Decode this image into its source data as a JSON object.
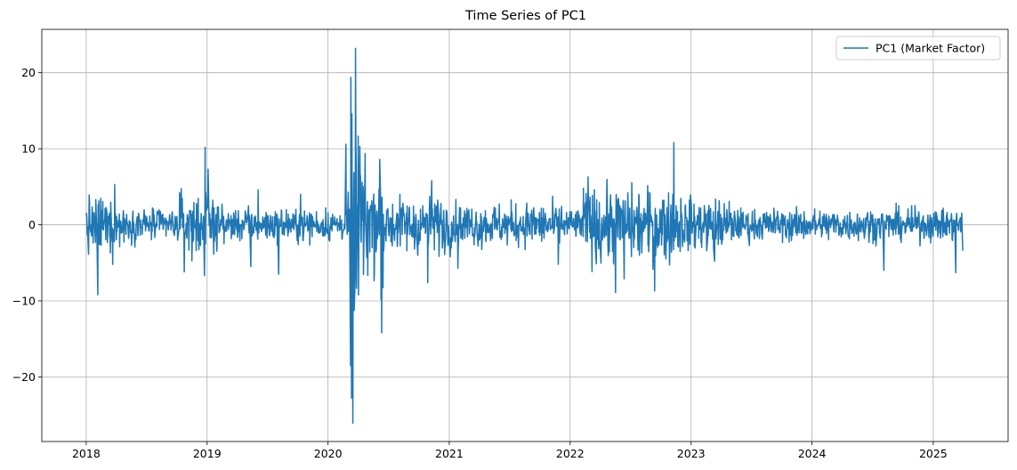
{
  "chart_data": {
    "type": "line",
    "title": "Time Series of PC1",
    "xlabel": "",
    "ylabel": "",
    "x_start": "2018-01-01",
    "x_end": "2025-03-31",
    "xlim": [
      "2017-08-20",
      "2025-08-15"
    ],
    "ylim": [
      -28.5,
      25.7
    ],
    "x_ticks": [
      "2018",
      "2019",
      "2020",
      "2021",
      "2022",
      "2023",
      "2024",
      "2025"
    ],
    "y_ticks": [
      -20,
      -10,
      0,
      10,
      20
    ],
    "y_tick_labels": [
      "−20",
      "−10",
      "0",
      "10",
      "20"
    ],
    "grid": true,
    "legend": {
      "position": "top-right",
      "entries": [
        "PC1 (Market Factor)"
      ]
    },
    "series": [
      {
        "name": "PC1 (Market Factor)",
        "color": "#1f77b4",
        "key_points": [
          {
            "x": "2018-01-03",
            "y": 1.0
          },
          {
            "x": "2018-02-05",
            "y": -9.2
          },
          {
            "x": "2018-02-10",
            "y": 3.6
          },
          {
            "x": "2018-03-22",
            "y": -5.2
          },
          {
            "x": "2018-03-28",
            "y": 5.3
          },
          {
            "x": "2018-10-24",
            "y": -6.2
          },
          {
            "x": "2018-10-10",
            "y": 4.2
          },
          {
            "x": "2018-12-24",
            "y": -6.7
          },
          {
            "x": "2018-12-26",
            "y": 10.2
          },
          {
            "x": "2019-01-04",
            "y": 7.3
          },
          {
            "x": "2019-05-13",
            "y": -5.5
          },
          {
            "x": "2019-06-04",
            "y": 4.6
          },
          {
            "x": "2019-08-05",
            "y": -6.5
          },
          {
            "x": "2019-10-10",
            "y": 4.0
          },
          {
            "x": "2020-02-24",
            "y": 10.6
          },
          {
            "x": "2020-03-09",
            "y": -18.5
          },
          {
            "x": "2020-03-10",
            "y": 19.4
          },
          {
            "x": "2020-03-12",
            "y": -22.8
          },
          {
            "x": "2020-03-13",
            "y": 14.6
          },
          {
            "x": "2020-03-16",
            "y": -26.1
          },
          {
            "x": "2020-03-24",
            "y": 23.2
          },
          {
            "x": "2020-04-06",
            "y": 10.3
          },
          {
            "x": "2020-06-11",
            "y": -14.2
          },
          {
            "x": "2020-06-05",
            "y": 8.6
          },
          {
            "x": "2020-10-28",
            "y": -7.6
          },
          {
            "x": "2020-11-09",
            "y": 5.8
          },
          {
            "x": "2021-01-27",
            "y": -5.7
          },
          {
            "x": "2021-11-26",
            "y": -5.2
          },
          {
            "x": "2022-02-24",
            "y": 6.3
          },
          {
            "x": "2022-05-18",
            "y": -8.9
          },
          {
            "x": "2022-06-13",
            "y": -7.1
          },
          {
            "x": "2022-09-13",
            "y": -8.7
          },
          {
            "x": "2022-11-10",
            "y": 10.8
          },
          {
            "x": "2023-03-13",
            "y": -4.8
          },
          {
            "x": "2024-08-05",
            "y": -6.0
          },
          {
            "x": "2025-03-10",
            "y": -6.3
          },
          {
            "x": "2025-03-31",
            "y": -3.4
          }
        ]
      }
    ]
  }
}
